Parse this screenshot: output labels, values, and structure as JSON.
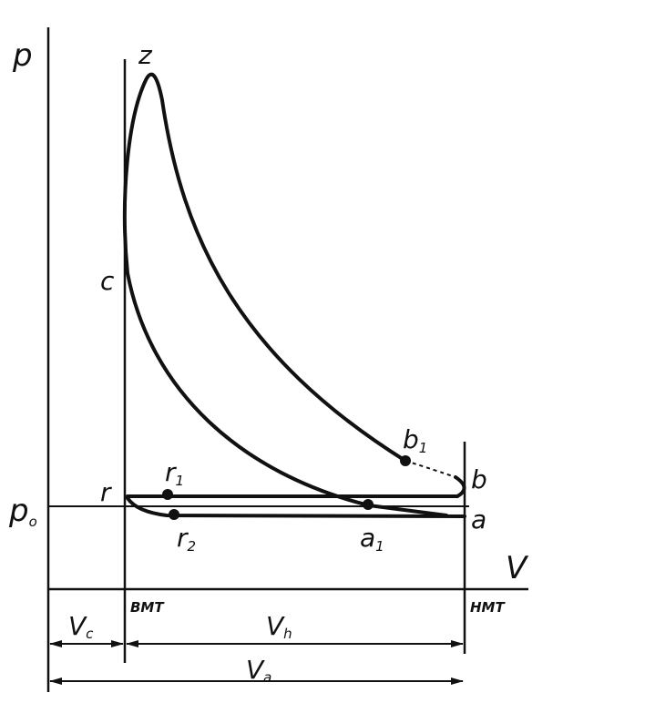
{
  "axes": {
    "p_label": "p",
    "v_label": "V",
    "p0_label": "p",
    "p0_sub": "o"
  },
  "points": {
    "z_top": "z",
    "c": "c",
    "b1": "b",
    "b1_sub": "1",
    "b": "b",
    "r": "r",
    "r1": "r",
    "r1_sub": "1",
    "r2": "r",
    "r2_sub": "2",
    "a": "a",
    "a1": "a",
    "a1_sub": "1"
  },
  "markers": {
    "tdc": "BMT",
    "bdc": "HMT"
  },
  "dimensions": {
    "vc": "V",
    "vc_sub": "c",
    "vh": "V",
    "vh_sub": "h",
    "va": "V",
    "va_sub": "a"
  },
  "colors": {
    "ink": "#111111",
    "paper": "#ffffff"
  }
}
